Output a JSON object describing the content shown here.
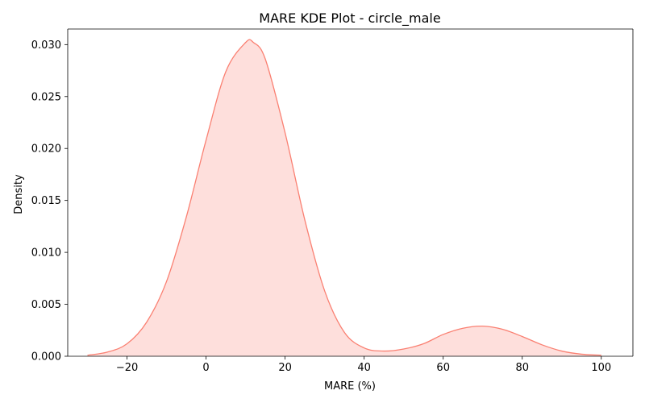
{
  "chart_data": {
    "type": "area",
    "title": "MARE KDE Plot - circle_male",
    "xlabel": "MARE (%)",
    "ylabel": "Density",
    "xlim": [
      -35,
      108
    ],
    "ylim": [
      0,
      0.0315
    ],
    "x_ticks": [
      -20,
      0,
      20,
      40,
      60,
      80,
      100
    ],
    "x_tick_labels": [
      "−20",
      "0",
      "20",
      "40",
      "60",
      "80",
      "100"
    ],
    "y_ticks": [
      0,
      0.005,
      0.01,
      0.015,
      0.02,
      0.025,
      0.03
    ],
    "y_tick_labels": [
      "0.000",
      "0.005",
      "0.010",
      "0.015",
      "0.020",
      "0.025",
      "0.030"
    ],
    "grid": false,
    "series": [
      {
        "name": "circle_male",
        "color": "#fa8072",
        "fill_opacity": 0.25,
        "x": [
          -30,
          -25,
          -20,
          -15,
          -10,
          -5,
          0,
          5,
          10,
          12,
          15,
          20,
          25,
          30,
          35,
          40,
          45,
          50,
          55,
          60,
          65,
          70,
          75,
          80,
          85,
          90,
          95,
          100
        ],
        "y": [
          0.0001,
          0.0004,
          0.0012,
          0.0033,
          0.0072,
          0.0134,
          0.0208,
          0.0274,
          0.0302,
          0.0302,
          0.0286,
          0.0215,
          0.0131,
          0.0063,
          0.0023,
          0.0008,
          0.0005,
          0.0007,
          0.0012,
          0.0021,
          0.0027,
          0.0029,
          0.0026,
          0.0019,
          0.0011,
          0.0005,
          0.0002,
          0.0001
        ]
      }
    ]
  }
}
